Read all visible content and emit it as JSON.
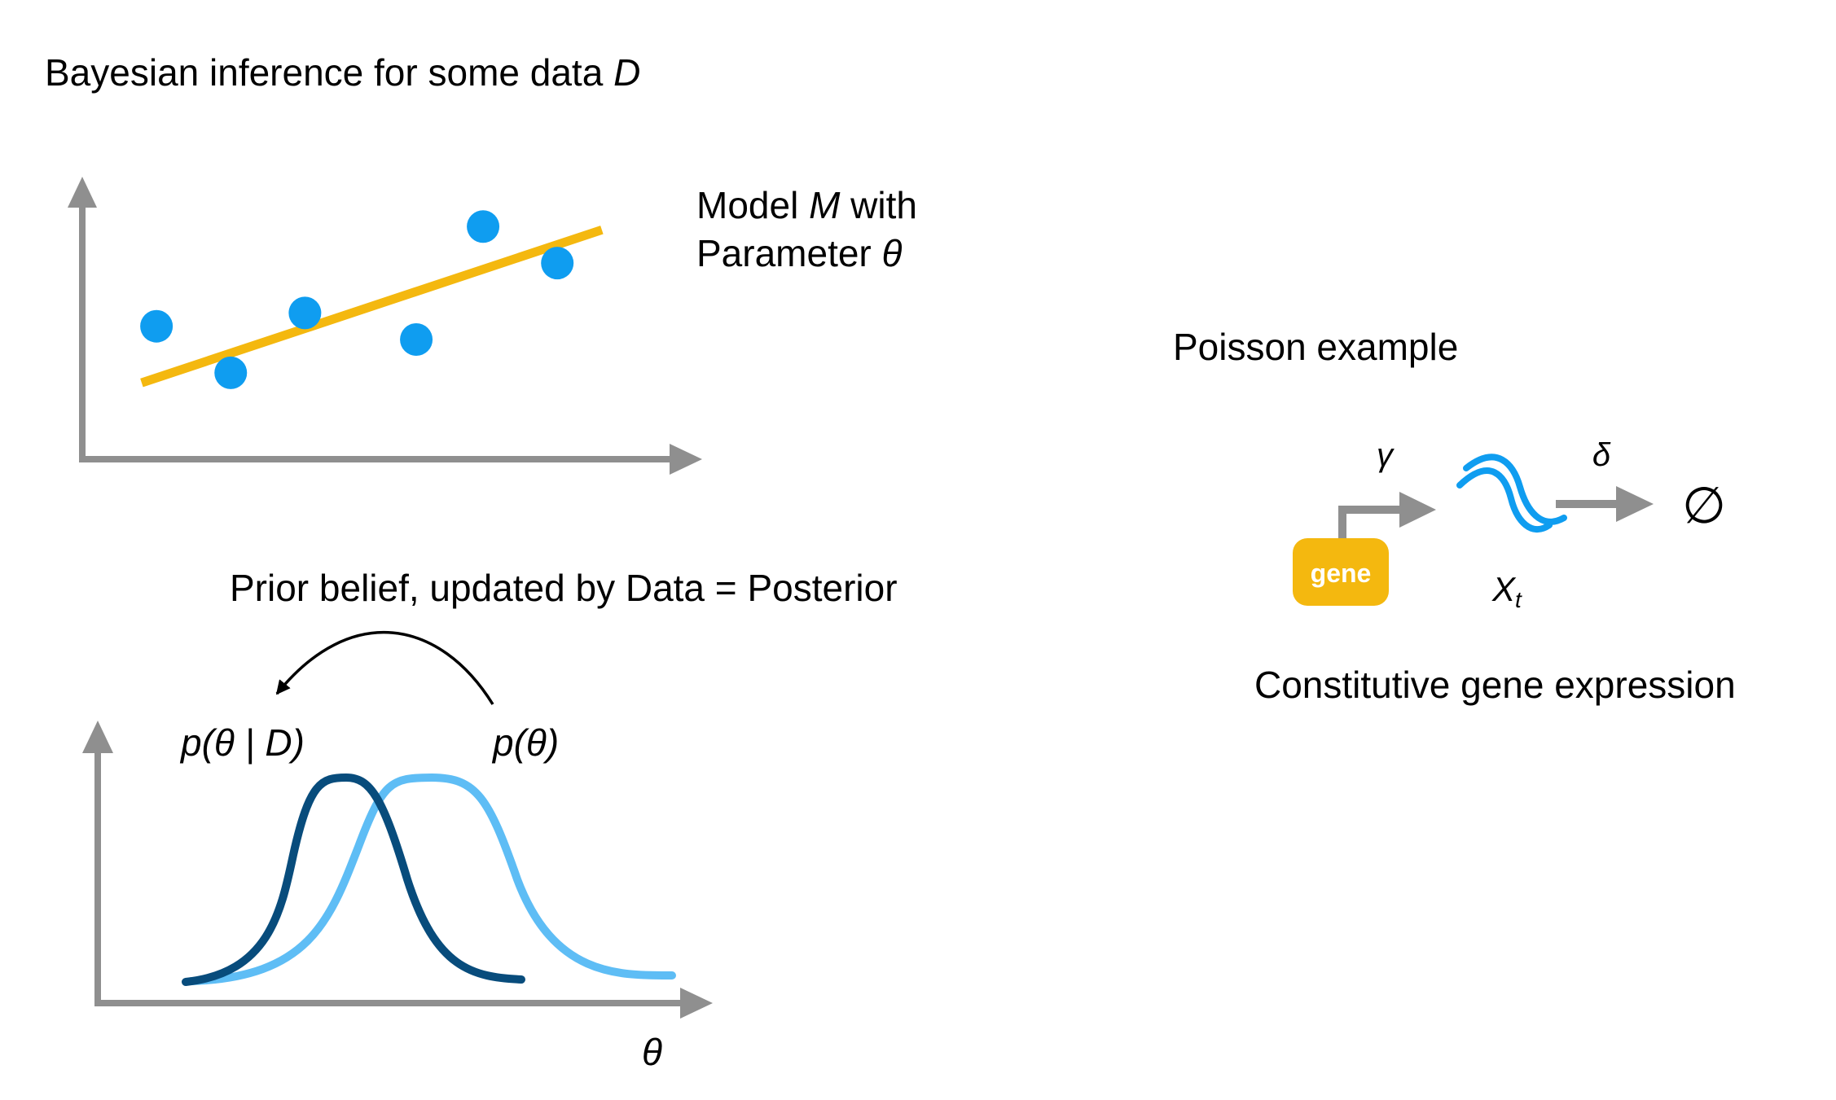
{
  "top_left": {
    "title_text": "Bayesian inference for some data ",
    "title_var": "D",
    "model_line1_text": "Model ",
    "model_line1_var": "M",
    "model_line1_suffix": " with",
    "model_line2_text": "Parameter ",
    "model_line2_var": "θ",
    "data_points": [
      {
        "x": 1.0,
        "y": 4.0
      },
      {
        "x": 2.0,
        "y": 2.6
      },
      {
        "x": 3.0,
        "y": 4.4
      },
      {
        "x": 4.5,
        "y": 3.6
      },
      {
        "x": 5.4,
        "y": 7.0
      },
      {
        "x": 6.4,
        "y": 5.9
      }
    ],
    "fit_line": {
      "x_start": 0.8,
      "y_start": 2.3,
      "x_end": 7.0,
      "y_end": 6.9
    },
    "colors": {
      "points": "#0f9df0",
      "fit": "#f4b80f",
      "axes": "#8f8f8f"
    }
  },
  "bottom_left": {
    "caption": "Prior belief, updated by Data = Posterior",
    "posterior_label": "p(θ | D)",
    "prior_label": "p(θ)",
    "x_axis_label": "θ",
    "colors": {
      "posterior": "#084c7c",
      "prior": "#5ebdf5",
      "axes": "#8f8f8f",
      "arrow": "#000000"
    }
  },
  "right": {
    "title": "Poisson example",
    "gene_label": "gene",
    "rate_gamma": "γ",
    "rate_delta": "δ",
    "species_var": "X",
    "species_sub": "t",
    "degradation_symbol": "∅",
    "caption": "Constitutive gene expression",
    "colors": {
      "gene_box": "#f4b80f",
      "mrna": "#0f9df0",
      "arrow": "#8f8f8f"
    }
  }
}
